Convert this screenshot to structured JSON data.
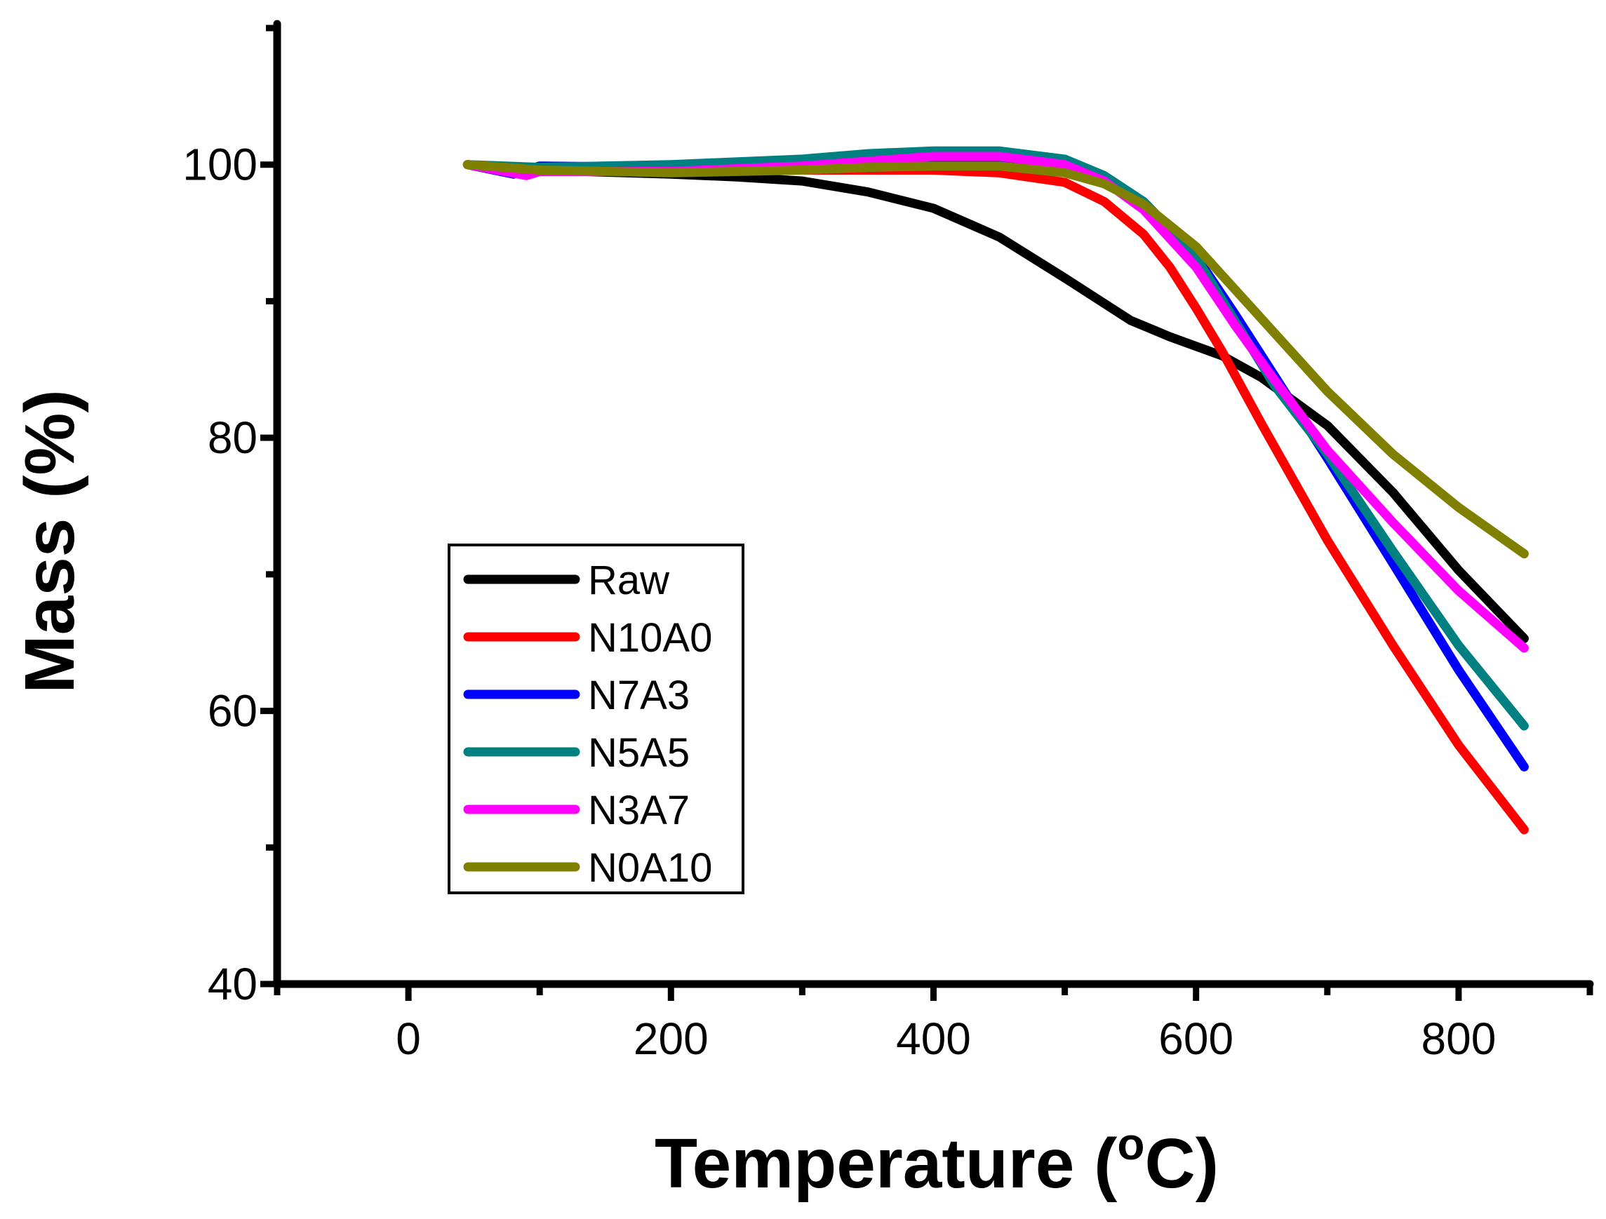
{
  "chart_data": {
    "type": "line",
    "title": "",
    "xlabel_main": "Temperature (",
    "xlabel_sup": "o",
    "xlabel_end": "C)",
    "ylabel": "Mass (%)",
    "xlim": [
      -100,
      900
    ],
    "ylim": [
      40,
      110
    ],
    "x_ticks": [
      0,
      200,
      400,
      600,
      800
    ],
    "x_minor_ticks": [
      -100,
      100,
      300,
      500,
      700,
      900
    ],
    "y_ticks": [
      40,
      60,
      80,
      100
    ],
    "y_minor_ticks": [
      50,
      70,
      90,
      110
    ],
    "grid": false,
    "legend_position": "lower-left",
    "series": [
      {
        "name": "Raw",
        "color": "#000000",
        "x": [
          45,
          100,
          200,
          250,
          300,
          350,
          400,
          450,
          500,
          550,
          580,
          620,
          650,
          700,
          750,
          800,
          850
        ],
        "y": [
          100,
          99.6,
          99.3,
          99.1,
          98.8,
          98.0,
          96.8,
          94.7,
          91.7,
          88.6,
          87.4,
          86.0,
          84.4,
          80.9,
          76.0,
          70.3,
          65.3
        ]
      },
      {
        "name": "N10A0",
        "color": "#ff0000",
        "x": [
          45,
          90,
          100,
          200,
          300,
          400,
          450,
          500,
          530,
          560,
          580,
          600,
          620,
          650,
          700,
          750,
          800,
          850
        ],
        "y": [
          100,
          99.3,
          99.6,
          99.5,
          99.6,
          99.6,
          99.4,
          98.7,
          97.3,
          94.9,
          92.5,
          89.5,
          86.3,
          81.0,
          72.5,
          64.8,
          57.5,
          51.3
        ]
      },
      {
        "name": "N7A3",
        "color": "#0000ff",
        "x": [
          45,
          80,
          100,
          200,
          300,
          400,
          450,
          500,
          530,
          560,
          600,
          630,
          660,
          700,
          750,
          800,
          850
        ],
        "y": [
          100,
          99.3,
          99.9,
          99.8,
          100.1,
          100.5,
          100.5,
          100.0,
          99.0,
          97.3,
          93.3,
          89.0,
          84.5,
          78.5,
          70.8,
          63.0,
          55.9
        ]
      },
      {
        "name": "N5A5",
        "color": "#008080",
        "x": [
          45,
          100,
          200,
          300,
          350,
          400,
          450,
          500,
          530,
          560,
          600,
          630,
          660,
          700,
          750,
          800,
          850
        ],
        "y": [
          100,
          99.8,
          100.0,
          100.4,
          100.8,
          101.0,
          101.0,
          100.4,
          99.2,
          97.3,
          93.2,
          88.5,
          83.8,
          78.8,
          71.7,
          64.8,
          58.9
        ]
      },
      {
        "name": "N3A7",
        "color": "#ff00ff",
        "x": [
          45,
          90,
          100,
          200,
          300,
          400,
          450,
          500,
          530,
          560,
          600,
          630,
          660,
          700,
          750,
          800,
          850
        ],
        "y": [
          100,
          99.2,
          99.5,
          99.5,
          99.9,
          100.6,
          100.6,
          100.0,
          98.8,
          96.7,
          92.5,
          88.2,
          84.2,
          79.1,
          73.8,
          68.8,
          64.6
        ]
      },
      {
        "name": "N0A10",
        "color": "#808000",
        "x": [
          45,
          100,
          200,
          300,
          350,
          400,
          450,
          500,
          530,
          560,
          600,
          650,
          700,
          750,
          800,
          850
        ],
        "y": [
          100,
          99.6,
          99.4,
          99.6,
          99.8,
          99.9,
          99.9,
          99.4,
          98.6,
          97.1,
          94.0,
          88.7,
          83.4,
          78.8,
          74.9,
          71.5
        ]
      }
    ]
  }
}
